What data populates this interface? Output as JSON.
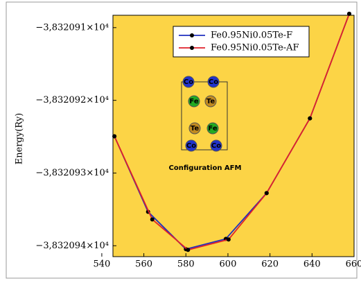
{
  "chart_data": {
    "type": "line",
    "y_label": "Energy(Ry)",
    "x": [
      546,
      562,
      580,
      599,
      618.4,
      639,
      657.7
    ],
    "series": [
      {
        "name": "Fe0.95Ni0.05Te-F",
        "color": "#1f2fbf",
        "x": [
          546,
          562,
          580,
          599,
          618.4,
          639,
          657.7
        ],
        "values": [
          -38320.92495,
          -38320.93533,
          -38320.94048,
          -38320.93905,
          -38320.93276,
          -38320.92248,
          -38320.9081
        ]
      },
      {
        "name": "Fe0.95Ni0.05Te-AF",
        "color": "#e0202a",
        "x": [
          546,
          564,
          581,
          600.3,
          618.4,
          639,
          657.7
        ],
        "values": [
          -38320.92495,
          -38320.93638,
          -38320.94057,
          -38320.93914,
          -38320.93276,
          -38320.92248,
          -38320.9081
        ]
      }
    ],
    "xlim": [
      545.3,
      660
    ],
    "xticks": [
      540,
      560,
      580,
      600,
      620,
      640,
      660
    ],
    "ylim": [
      -38320.9415,
      -38320.9083
    ],
    "yticks": [
      {
        "value": -38320.91,
        "label": "−3,832091×10⁴"
      },
      {
        "value": -38320.92,
        "label": "−3,832092×10⁴"
      },
      {
        "value": -38320.93,
        "label": "−3,832093×10⁴"
      },
      {
        "value": -38320.94,
        "label": "−3,832094×10⁴"
      }
    ],
    "background": "#fcd446",
    "legend": "top-right",
    "inset": {
      "caption": "Configuration AFM",
      "atoms": [
        "Co",
        "Co",
        "Fe",
        "Te",
        "Te",
        "Fe",
        "Co",
        "Co"
      ]
    }
  }
}
